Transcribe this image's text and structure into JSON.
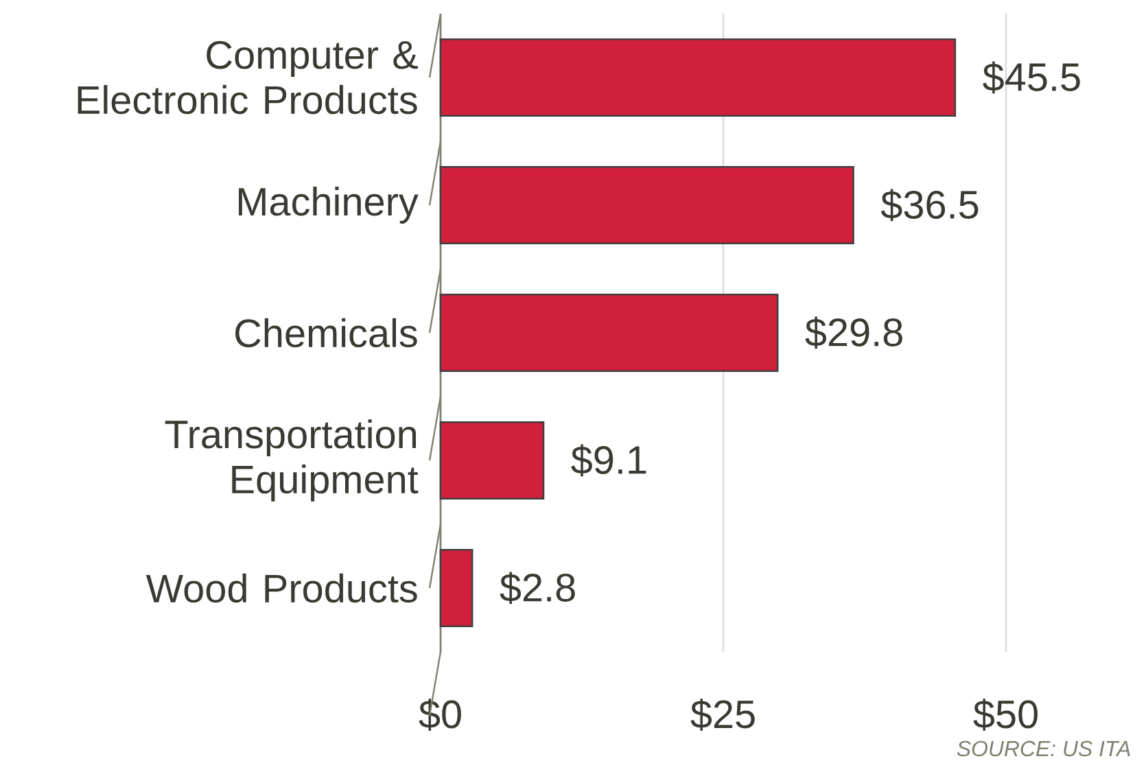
{
  "chart_data": {
    "type": "bar",
    "orientation": "horizontal",
    "categories": [
      "Computer & Electronic Products",
      "Machinery",
      "Chemicals",
      "Transportation Equipment",
      "Wood Products"
    ],
    "values": [
      45.5,
      36.5,
      29.8,
      9.1,
      2.8
    ],
    "value_labels": [
      "$45.5",
      "$36.5",
      "$29.8",
      "$9.1",
      "$2.8"
    ],
    "color": "#d21f3c",
    "xlim": [
      0,
      50
    ],
    "xticks": [
      {
        "value": 0,
        "label": "$0"
      },
      {
        "value": 25,
        "label": "$25"
      },
      {
        "value": 50,
        "label": "$50"
      }
    ],
    "grid": "x",
    "annotations": [
      "SOURCE: US ITA"
    ]
  }
}
